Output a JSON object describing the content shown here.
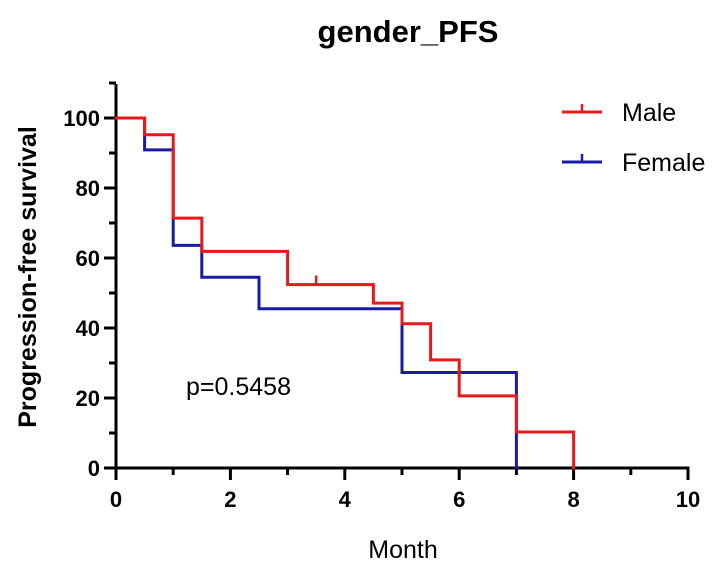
{
  "chart_data": {
    "type": "line",
    "title": "gender_PFS",
    "xlabel": "Month",
    "ylabel": "Progression-free survival",
    "xlim": [
      0,
      10
    ],
    "ylim": [
      0,
      100
    ],
    "xticks": [
      0,
      2,
      4,
      6,
      8,
      10
    ],
    "yticks": [
      0,
      20,
      40,
      60,
      80,
      100
    ],
    "xtick_labels": [
      "0",
      "2",
      "4",
      "6",
      "8",
      "10"
    ],
    "ytick_labels": [
      "0",
      "20",
      "40",
      "60",
      "80",
      "100"
    ],
    "grid": false,
    "legend_position": "top-right",
    "annotation": "p=0.5458",
    "series": [
      {
        "name": "Male",
        "color": "#e8191b",
        "step_x": [
          0,
          0.5,
          1.0,
          1.5,
          3.0,
          4.5,
          5.0,
          5.5,
          6.0,
          7.0,
          8.0
        ],
        "step_y": [
          100,
          95.2,
          71.4,
          61.9,
          52.4,
          47.1,
          41.2,
          30.9,
          20.6,
          10.3,
          0
        ],
        "censored": [
          {
            "x": 3.5,
            "y": 52.4
          }
        ]
      },
      {
        "name": "Female",
        "color": "#1a1aa8",
        "step_x": [
          0,
          0.5,
          1.0,
          1.5,
          2.5,
          5.0,
          7.0
        ],
        "step_y": [
          100,
          90.9,
          63.6,
          54.5,
          45.5,
          27.3,
          0
        ],
        "censored": []
      }
    ]
  }
}
